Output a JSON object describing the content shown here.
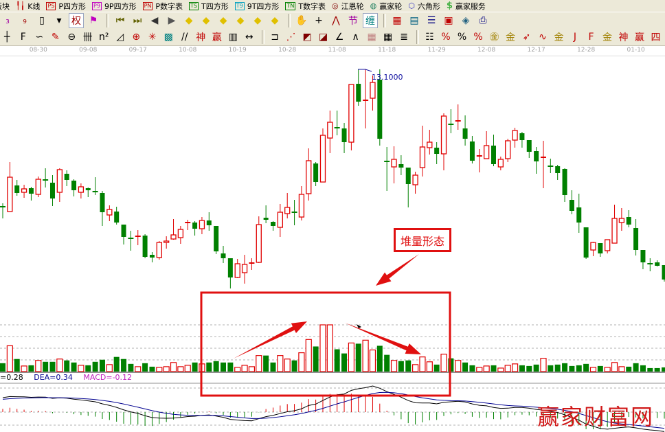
{
  "toolbar_row1": [
    {
      "icon": "sector-icon",
      "label": "板块"
    },
    {
      "icon": "kline-icon",
      "label": "K线"
    },
    {
      "icon": "ps-icon",
      "icon_text": "PS",
      "color": "#c00000",
      "label": "P四方形"
    },
    {
      "icon": "p9-icon",
      "icon_text": "P9",
      "color": "#c000c0",
      "label": "9P四方形"
    },
    {
      "icon": "pn-icon",
      "icon_text": "PN",
      "color": "#c00000",
      "label": "P数字表"
    },
    {
      "icon": "ts-icon",
      "icon_text": "TS",
      "color": "#008000",
      "label": "T四方形"
    },
    {
      "icon": "t9-icon",
      "icon_text": "T9",
      "color": "#00a0c0",
      "label": "9T四方形"
    },
    {
      "icon": "tn-icon",
      "icon_text": "TN",
      "color": "#008000",
      "label": "T数字表"
    },
    {
      "icon": "gann-wheel-icon",
      "label": "江恩轮"
    },
    {
      "icon": "big-wheel-icon",
      "label": "赢家轮"
    },
    {
      "icon": "hexagon-icon",
      "label": "六角形"
    },
    {
      "icon": "dollar-icon",
      "label": "赢家服务"
    }
  ],
  "toolbar_row2": [
    "kline3-icon",
    "kline9-icon",
    "candle-icon",
    "dropdown-icon",
    "rights-icon",
    "flag-icon",
    "|",
    "first-icon",
    "last-icon",
    "prev-icon",
    "next-icon",
    "diamond-left-icon",
    "diamond-right-icon",
    "diamond-horizontal-icon",
    "diamond-in-icon",
    "diamond-cross-icon",
    "diamond-vertical-icon",
    "|",
    "hand-icon",
    "crosshair-icon",
    "polyline-icon",
    "node-icon",
    "chan-icon",
    "|",
    "calendar-icon",
    "calculator-icon",
    "notes-icon",
    "save-icon",
    "network-icon",
    "printer-icon"
  ],
  "toolbar_row3": [
    "ruler-icon",
    "fib-icon",
    "spiral-icon",
    "pen-icon",
    "circle-icon",
    "bars-icon",
    "n2-icon",
    "triangle-icon",
    "target-icon",
    "star-icon",
    "grid-icon",
    "parallel-icon",
    "shen-icon",
    "ying-icon",
    "numbers-icon",
    "width-icon",
    "|",
    "box-icon",
    "fan-icon",
    "square-fan-icon",
    "square-fan2-icon",
    "angle-icon",
    "wave-icon",
    "grid-red-icon",
    "grid-black-icon",
    "lines-icon",
    "|",
    "level-icon",
    "percent-red-icon",
    "percent-icon",
    "percent-line-icon",
    "gold-circle-icon",
    "gold-line-icon",
    "rocket-icon",
    "sine-icon",
    "gold-icon",
    "j-angle-icon",
    "f-angle-icon",
    "gold-angle-icon",
    "shen-angle-icon",
    "ying-angle-icon",
    "si-angle-icon"
  ],
  "date_axis": [
    {
      "label": "08-30",
      "index": 5
    },
    {
      "label": "09-08",
      "index": 12
    },
    {
      "label": "09-17",
      "index": 19
    },
    {
      "label": "10-08",
      "index": 26
    },
    {
      "label": "10-19",
      "index": 33
    },
    {
      "label": "10-28",
      "index": 40
    },
    {
      "label": "11-08",
      "index": 47
    },
    {
      "label": "11-18",
      "index": 54
    },
    {
      "label": "11-29",
      "index": 61
    },
    {
      "label": "12-08",
      "index": 68
    },
    {
      "label": "12-17",
      "index": 75
    },
    {
      "label": "12-28",
      "index": 82
    },
    {
      "label": "01-10",
      "index": 89
    }
  ],
  "chart_data": {
    "type": "candlestick",
    "high_label": "13.1000",
    "colors": {
      "up": "#e00000",
      "down": "#008000",
      "dif": "#000000",
      "dea": "#000090"
    },
    "ohlc": [
      [
        11.1,
        11.15,
        10.93,
        11.1
      ],
      [
        11.03,
        11.75,
        11.03,
        11.53
      ],
      [
        11.41,
        11.49,
        11.26,
        11.3
      ],
      [
        11.31,
        11.42,
        11.23,
        11.36
      ],
      [
        11.37,
        11.39,
        11.19,
        11.29
      ],
      [
        11.28,
        11.54,
        11.24,
        11.5
      ],
      [
        11.49,
        11.66,
        11.38,
        11.49
      ],
      [
        11.45,
        11.56,
        11.11,
        11.22
      ],
      [
        11.31,
        11.66,
        11.17,
        11.64
      ],
      [
        11.58,
        11.63,
        11.4,
        11.49
      ],
      [
        11.48,
        11.5,
        11.25,
        11.34
      ],
      [
        11.31,
        11.44,
        11.22,
        11.39
      ],
      [
        11.37,
        11.38,
        11.24,
        11.34
      ],
      [
        11.32,
        11.53,
        11.27,
        11.32
      ],
      [
        11.3,
        11.33,
        10.82,
        11.02
      ],
      [
        10.98,
        11.12,
        10.89,
        11.06
      ],
      [
        11.03,
        11.1,
        10.84,
        10.87
      ],
      [
        10.84,
        10.84,
        10.55,
        10.66
      ],
      [
        10.64,
        10.75,
        10.46,
        10.64
      ],
      [
        10.67,
        10.76,
        10.54,
        10.67
      ],
      [
        10.68,
        10.7,
        10.35,
        10.37
      ],
      [
        10.4,
        10.44,
        10.29,
        10.36
      ],
      [
        10.36,
        10.6,
        10.33,
        10.58
      ],
      [
        10.58,
        10.67,
        10.49,
        10.6
      ],
      [
        10.63,
        10.92,
        10.62,
        10.69
      ],
      [
        10.65,
        10.82,
        10.56,
        10.77
      ],
      [
        10.87,
        10.91,
        10.76,
        10.87
      ],
      [
        10.87,
        10.89,
        10.68,
        10.78
      ],
      [
        10.78,
        10.95,
        10.7,
        10.9
      ],
      [
        10.9,
        11.02,
        10.75,
        10.83
      ],
      [
        10.82,
        10.82,
        10.41,
        10.45
      ],
      [
        10.42,
        10.53,
        10.28,
        10.35
      ],
      [
        10.35,
        10.35,
        9.91,
        10.07
      ],
      [
        10.07,
        10.34,
        10.06,
        10.27
      ],
      [
        10.14,
        10.4,
        9.98,
        10.26
      ],
      [
        10.28,
        10.35,
        10.18,
        10.28
      ],
      [
        10.29,
        10.96,
        10.28,
        10.84
      ],
      [
        10.94,
        11.12,
        10.86,
        10.91
      ],
      [
        10.88,
        10.89,
        10.75,
        10.82
      ],
      [
        10.8,
        11.14,
        10.66,
        11.02
      ],
      [
        11.0,
        11.3,
        10.93,
        11.09
      ],
      [
        11.02,
        11.2,
        10.83,
        11.02
      ],
      [
        10.95,
        11.4,
        10.9,
        11.28
      ],
      [
        11.29,
        11.95,
        11.19,
        11.77
      ],
      [
        11.73,
        11.75,
        11.4,
        11.46
      ],
      [
        11.46,
        12.24,
        11.46,
        12.14
      ],
      [
        12.1,
        12.5,
        11.88,
        12.33
      ],
      [
        12.25,
        12.5,
        12.14,
        12.25
      ],
      [
        12.24,
        12.32,
        11.88,
        12.04
      ],
      [
        12.04,
        12.88,
        11.92,
        12.88
      ],
      [
        12.89,
        13.1,
        12.57,
        12.63
      ],
      [
        12.65,
        13.1,
        12.24,
        12.65
      ],
      [
        12.68,
        13.01,
        12.5,
        12.91
      ],
      [
        12.95,
        13.1,
        11.99,
        12.09
      ],
      [
        11.76,
        11.97,
        11.33,
        11.76
      ],
      [
        11.68,
        11.98,
        11.44,
        11.79
      ],
      [
        11.72,
        11.85,
        11.56,
        11.67
      ],
      [
        11.67,
        11.67,
        11.09,
        11.43
      ],
      [
        11.42,
        11.61,
        11.29,
        11.56
      ],
      [
        11.67,
        12.28,
        11.54,
        11.97
      ],
      [
        11.96,
        12.22,
        11.86,
        12.04
      ],
      [
        11.96,
        12.04,
        11.72,
        11.87
      ],
      [
        11.87,
        12.46,
        11.63,
        12.42
      ],
      [
        12.3,
        12.52,
        12.17,
        12.3
      ],
      [
        12.35,
        12.59,
        12.22,
        12.35
      ],
      [
        12.24,
        12.43,
        11.99,
        12.09
      ],
      [
        12.05,
        12.13,
        11.73,
        11.77
      ],
      [
        11.84,
        11.94,
        11.6,
        11.84
      ],
      [
        11.8,
        12.2,
        11.8,
        11.99
      ],
      [
        11.99,
        12.15,
        11.69,
        11.72
      ],
      [
        11.68,
        11.83,
        11.63,
        11.79
      ],
      [
        11.8,
        12.09,
        11.75,
        12.06
      ],
      [
        12.07,
        12.25,
        11.96,
        12.21
      ],
      [
        12.17,
        12.19,
        11.96,
        12.07
      ],
      [
        12.07,
        12.07,
        11.81,
        11.9
      ],
      [
        11.91,
        11.97,
        11.58,
        11.76
      ],
      [
        11.82,
        12.06,
        11.37,
        11.82
      ],
      [
        11.69,
        11.8,
        11.59,
        11.69
      ],
      [
        11.69,
        11.71,
        11.49,
        11.59
      ],
      [
        11.65,
        11.66,
        11.17,
        11.27
      ],
      [
        11.2,
        11.34,
        10.99,
        11.04
      ],
      [
        11.09,
        11.29,
        10.72,
        10.87
      ],
      [
        10.8,
        10.8,
        10.34,
        10.36
      ],
      [
        10.47,
        10.59,
        10.38,
        10.58
      ],
      [
        10.57,
        10.57,
        10.37,
        10.42
      ],
      [
        10.46,
        10.62,
        10.42,
        10.62
      ],
      [
        10.57,
        11.13,
        10.57,
        10.93
      ],
      [
        10.87,
        11.08,
        10.75,
        10.93
      ],
      [
        10.95,
        11.05,
        10.8,
        10.84
      ],
      [
        10.79,
        10.92,
        10.39,
        10.47
      ],
      [
        10.47,
        10.47,
        10.19,
        10.29
      ],
      [
        10.27,
        10.35,
        10.16,
        10.27
      ],
      [
        10.29,
        10.32,
        10.23,
        10.24
      ],
      [
        10.25,
        10.25,
        10.01,
        10.04
      ]
    ],
    "volume": [
      12,
      37,
      18,
      8,
      9,
      16,
      14,
      14,
      18,
      16,
      13,
      9,
      9,
      14,
      17,
      10,
      21,
      18,
      11,
      7,
      12,
      7,
      6,
      7,
      13,
      7,
      9,
      13,
      11,
      13,
      15,
      13,
      13,
      6,
      9,
      7,
      23,
      23,
      13,
      23,
      18,
      16,
      27,
      46,
      36,
      67,
      67,
      32,
      26,
      41,
      40,
      45,
      31,
      37,
      24,
      16,
      15,
      16,
      10,
      21,
      14,
      10,
      25,
      19,
      16,
      13,
      9,
      6,
      8,
      9,
      5,
      9,
      11,
      9,
      8,
      10,
      19,
      9,
      10,
      12,
      8,
      9,
      11,
      6,
      8,
      6,
      13,
      7,
      7,
      12,
      9,
      5,
      5,
      6
    ],
    "volume_max": 70,
    "indicators": {
      "dif_label": "=0.28",
      "dea_label": "DEA=0.34",
      "macd_label": "MACD=-0.12"
    }
  },
  "annotation": {
    "label": "堆量形态",
    "color": "#e01010"
  },
  "watermark": "赢家财富网"
}
